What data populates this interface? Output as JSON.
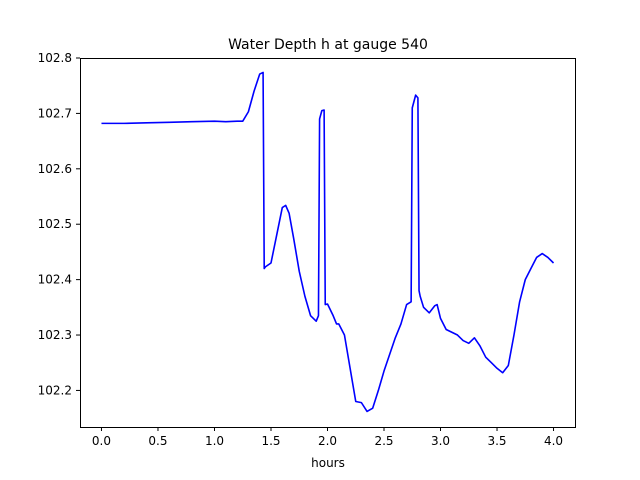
{
  "chart_data": {
    "type": "line",
    "title": "Water Depth h at gauge 540",
    "xlabel": "hours",
    "ylabel": "",
    "xlim": [
      -0.19,
      4.19
    ],
    "ylim": [
      102.134,
      102.8
    ],
    "xticks": [
      0.0,
      0.5,
      1.0,
      1.5,
      2.0,
      2.5,
      3.0,
      3.5,
      4.0
    ],
    "xtick_labels": [
      "0.0",
      "0.5",
      "1.0",
      "1.5",
      "2.0",
      "2.5",
      "3.0",
      "3.5",
      "4.0"
    ],
    "yticks": [
      102.2,
      102.3,
      102.4,
      102.5,
      102.6,
      102.7,
      102.8
    ],
    "ytick_labels": [
      "102.2",
      "102.3",
      "102.4",
      "102.5",
      "102.6",
      "102.7",
      "102.8"
    ],
    "grid": false,
    "series": [
      {
        "color": "#0000ff",
        "x": [
          0.0,
          0.2,
          0.4,
          0.6,
          0.8,
          1.0,
          1.1,
          1.2,
          1.25,
          1.3,
          1.35,
          1.4,
          1.43,
          1.44,
          1.45,
          1.5,
          1.55,
          1.6,
          1.63,
          1.66,
          1.7,
          1.75,
          1.8,
          1.85,
          1.9,
          1.92,
          1.93,
          1.95,
          1.97,
          1.98,
          2.0,
          2.05,
          2.08,
          2.1,
          2.15,
          2.2,
          2.25,
          2.3,
          2.35,
          2.4,
          2.45,
          2.5,
          2.55,
          2.6,
          2.65,
          2.7,
          2.74,
          2.75,
          2.78,
          2.8,
          2.81,
          2.82,
          2.85,
          2.9,
          2.95,
          2.97,
          3.0,
          3.05,
          3.1,
          3.15,
          3.2,
          3.25,
          3.3,
          3.35,
          3.4,
          3.45,
          3.5,
          3.55,
          3.6,
          3.65,
          3.7,
          3.75,
          3.8,
          3.85,
          3.9,
          3.95,
          4.0
        ],
        "y": [
          102.682,
          102.682,
          102.683,
          102.684,
          102.685,
          102.686,
          102.685,
          102.686,
          102.686,
          102.703,
          102.74,
          102.771,
          102.774,
          102.42,
          102.423,
          102.43,
          102.48,
          102.53,
          102.534,
          102.52,
          102.475,
          102.415,
          102.37,
          102.335,
          102.325,
          102.335,
          102.69,
          102.705,
          102.706,
          102.355,
          102.356,
          102.335,
          102.32,
          102.32,
          102.3,
          102.24,
          102.18,
          102.178,
          102.162,
          102.168,
          102.2,
          102.235,
          102.265,
          102.295,
          102.32,
          102.355,
          102.36,
          102.71,
          102.733,
          102.728,
          102.38,
          102.37,
          102.35,
          102.34,
          102.353,
          102.355,
          102.33,
          102.31,
          102.305,
          102.3,
          102.29,
          102.285,
          102.295,
          102.28,
          102.26,
          102.25,
          102.24,
          102.232,
          102.245,
          102.3,
          102.36,
          102.4,
          102.42,
          102.44,
          102.447,
          102.44,
          102.43
        ]
      }
    ]
  }
}
